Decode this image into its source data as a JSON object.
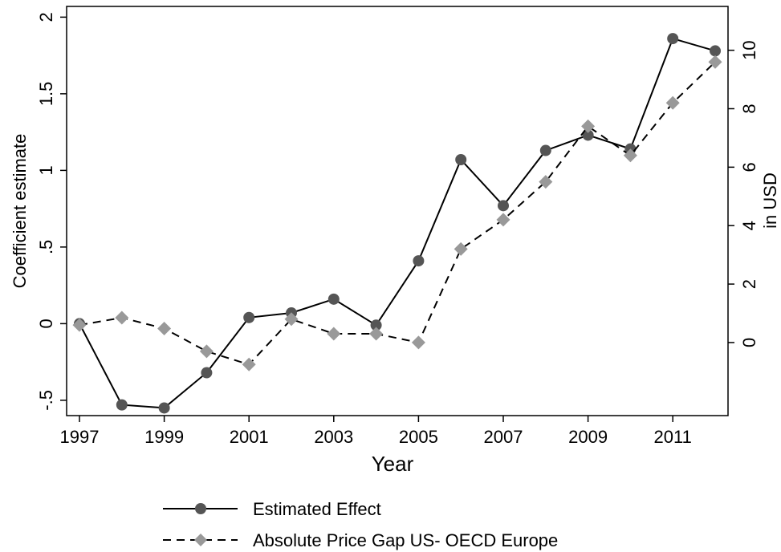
{
  "chart_data": {
    "type": "line",
    "xlabel": "Year",
    "ylabel_left": "Coefficient estimate",
    "ylabel_right": "in USD",
    "x": [
      1997,
      1998,
      1999,
      2000,
      2001,
      2002,
      2003,
      2004,
      2005,
      2006,
      2007,
      2008,
      2009,
      2010,
      2011,
      2012
    ],
    "x_ticks": [
      "1997",
      "1999",
      "2001",
      "2003",
      "2005",
      "2007",
      "2009",
      "2011"
    ],
    "ylim_left": [
      -0.6,
      2.07
    ],
    "ylim_right": [
      -2.5,
      11.5
    ],
    "y_ticks_left": [
      "-.5",
      "0",
      ".5",
      "1",
      "1.5",
      "2"
    ],
    "y_ticks_right": [
      "0",
      "2",
      "4",
      "6",
      "8",
      "10"
    ],
    "grid": false,
    "legend_position": "bottom",
    "series": [
      {
        "name": "Estimated Effect",
        "axis": "left",
        "line_style": "solid",
        "marker": "circle",
        "color": "#555555",
        "values": [
          0.0,
          -0.53,
          -0.55,
          -0.32,
          0.04,
          0.07,
          0.16,
          -0.01,
          0.41,
          1.07,
          0.77,
          1.13,
          1.23,
          1.14,
          1.86,
          1.78
        ]
      },
      {
        "name": "Absolute Price Gap US- OECD Europe",
        "axis": "right",
        "line_style": "dashed",
        "marker": "diamond",
        "color": "#999999",
        "values": [
          0.6,
          0.85,
          0.48,
          -0.3,
          -0.75,
          0.8,
          0.3,
          0.3,
          0.0,
          3.2,
          4.2,
          5.5,
          7.4,
          6.4,
          8.2,
          9.6
        ]
      }
    ]
  }
}
